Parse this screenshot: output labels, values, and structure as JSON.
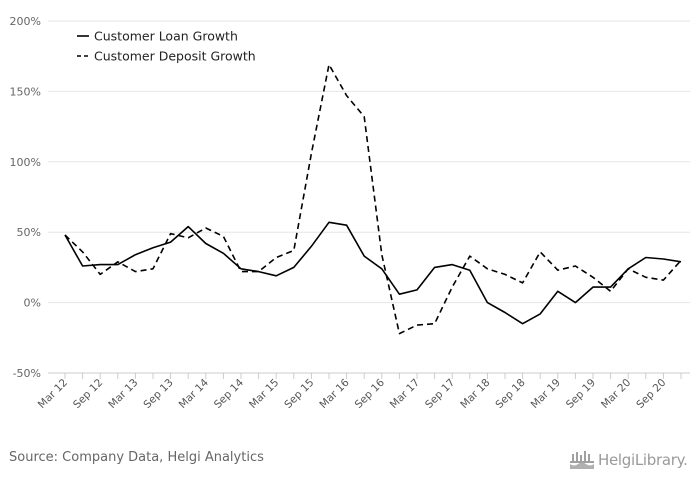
{
  "chart_data": {
    "type": "line",
    "title": "",
    "xlabel": "",
    "ylabel": "",
    "ylim": [
      -50,
      200
    ],
    "y_ticks": [
      -50,
      0,
      50,
      100,
      150,
      200
    ],
    "y_tick_labels": [
      "-50%",
      "0%",
      "50%",
      "100%",
      "150%",
      "200%"
    ],
    "grid": true,
    "legend": "top-left",
    "x": [
      "Mar 12",
      "Jun 12",
      "Sep 12",
      "Dec 12",
      "Mar 13",
      "Jun 13",
      "Sep 13",
      "Dec 13",
      "Mar 14",
      "Jun 14",
      "Sep 14",
      "Dec 14",
      "Mar 15",
      "Jun 15",
      "Sep 15",
      "Dec 15",
      "Mar 16",
      "Jun 16",
      "Sep 16",
      "Dec 16",
      "Mar 17",
      "Jun 17",
      "Sep 17",
      "Dec 17",
      "Mar 18",
      "Jun 18",
      "Sep 18",
      "Dec 18",
      "Mar 19",
      "Jun 19",
      "Sep 19",
      "Dec 19",
      "Mar 20",
      "Jun 20",
      "Sep 20",
      "Dec 20"
    ],
    "x_tick_labels": [
      "Mar 12",
      "Sep 12",
      "Mar 13",
      "Sep 13",
      "Mar 14",
      "Sep 14",
      "Mar 15",
      "Sep 15",
      "Mar 16",
      "Sep 16",
      "Mar 17",
      "Sep 17",
      "Mar 18",
      "Sep 18",
      "Mar 19",
      "Sep 19",
      "Mar 20",
      "Sep 20"
    ],
    "series": [
      {
        "name": "Customer Loan Growth",
        "style": "solid",
        "color": "#000000",
        "values": [
          48,
          26,
          27,
          27,
          34,
          39,
          43,
          54,
          42,
          35,
          24,
          22,
          19,
          25,
          40,
          57,
          55,
          33,
          24,
          6,
          9,
          25,
          27,
          23,
          0,
          -7,
          -15,
          -8,
          8,
          0,
          11,
          11,
          24,
          32,
          31,
          29
        ]
      },
      {
        "name": "Customer Deposit Growth",
        "style": "dashed",
        "color": "#000000",
        "values": [
          48,
          36,
          20,
          29,
          22,
          24,
          49,
          46,
          53,
          47,
          22,
          22,
          32,
          37,
          106,
          169,
          147,
          132,
          34,
          -22,
          -16,
          -15,
          11,
          33,
          24,
          20,
          14,
          36,
          23,
          26,
          18,
          8,
          24,
          18,
          16,
          30
        ]
      }
    ]
  },
  "footer": {
    "source_text": "Source: Company Data, Helgi Analytics",
    "logo_text": "HelgiLibrary."
  },
  "colors": {
    "grid": "#e6e6e6",
    "axis": "#cccccc",
    "text": "#666666",
    "line": "#000000",
    "logo": "#9a9a9a"
  }
}
